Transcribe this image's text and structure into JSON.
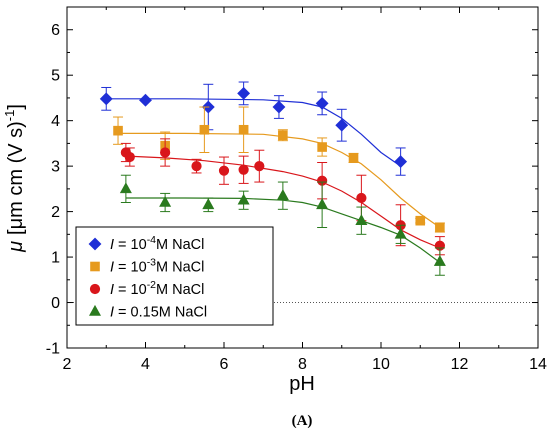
{
  "chart_data": {
    "type": "scatter",
    "caption": "(A)",
    "xlabel": "pH",
    "ylabel_symbol": "μ",
    "ylabel_unit": "[μm cm (V s)",
    "ylabel_exp": "-1",
    "ylabel_close": "]",
    "xlim": [
      2,
      14
    ],
    "ylim": [
      -1,
      6.5
    ],
    "xticks": [
      2,
      4,
      6,
      8,
      10,
      12,
      14
    ],
    "yticks": [
      -1,
      0,
      1,
      2,
      3,
      4,
      5,
      6
    ],
    "reference_line_y": 0,
    "legend_position": "bottom-left",
    "series": [
      {
        "name": "I = 10⁻⁴M NaCl",
        "legend_pre": "I",
        "legend_mid": " = 10",
        "legend_exp": "-4",
        "legend_post": "M NaCl",
        "color": "#1f2fd6",
        "marker": "diamond",
        "points": [
          {
            "x": 3.0,
            "y": 4.48,
            "err": 0.25
          },
          {
            "x": 4.0,
            "y": 4.45,
            "err": 0.0
          },
          {
            "x": 5.6,
            "y": 4.3,
            "err": 0.5
          },
          {
            "x": 6.5,
            "y": 4.6,
            "err": 0.25
          },
          {
            "x": 7.4,
            "y": 4.3,
            "err": 0.25
          },
          {
            "x": 8.5,
            "y": 4.38,
            "err": 0.25
          },
          {
            "x": 9.0,
            "y": 3.9,
            "err": 0.35
          },
          {
            "x": 10.5,
            "y": 3.1,
            "err": 0.3
          }
        ],
        "fit": [
          [
            3.0,
            4.48
          ],
          [
            5.0,
            4.48
          ],
          [
            7.0,
            4.46
          ],
          [
            8.0,
            4.4
          ],
          [
            8.5,
            4.3
          ],
          [
            9.0,
            4.05
          ],
          [
            9.5,
            3.7
          ],
          [
            10.0,
            3.3
          ],
          [
            10.5,
            3.0
          ]
        ]
      },
      {
        "name": "I = 10⁻³M NaCl",
        "legend_pre": "I",
        "legend_mid": " = 10",
        "legend_exp": "-3",
        "legend_post": "M NaCl",
        "color": "#e69a1e",
        "marker": "square",
        "points": [
          {
            "x": 3.3,
            "y": 3.78,
            "err": 0.3
          },
          {
            "x": 4.5,
            "y": 3.45,
            "err": 0.3
          },
          {
            "x": 5.5,
            "y": 3.8,
            "err": 0.5
          },
          {
            "x": 6.5,
            "y": 3.8,
            "err": 0.5
          },
          {
            "x": 7.5,
            "y": 3.68,
            "err": 0.12
          },
          {
            "x": 8.5,
            "y": 3.42,
            "err": 0.2
          },
          {
            "x": 9.3,
            "y": 3.18,
            "err": 0.1
          },
          {
            "x": 11.0,
            "y": 1.8,
            "err": 0.05
          },
          {
            "x": 11.5,
            "y": 1.65,
            "err": 0.1
          }
        ],
        "fit": [
          [
            3.3,
            3.72
          ],
          [
            5.0,
            3.72
          ],
          [
            7.0,
            3.7
          ],
          [
            8.0,
            3.6
          ],
          [
            8.5,
            3.5
          ],
          [
            9.0,
            3.3
          ],
          [
            9.5,
            3.05
          ],
          [
            10.0,
            2.7
          ],
          [
            10.5,
            2.3
          ],
          [
            11.0,
            1.95
          ],
          [
            11.5,
            1.65
          ]
        ]
      },
      {
        "name": "I = 10⁻²M NaCl",
        "legend_pre": "I",
        "legend_mid": " = 10",
        "legend_exp": "-2",
        "legend_post": "M NaCl",
        "color": "#d9161b",
        "marker": "circle",
        "points": [
          {
            "x": 3.5,
            "y": 3.3,
            "err": 0.2
          },
          {
            "x": 3.6,
            "y": 3.2,
            "err": 0.2
          },
          {
            "x": 4.5,
            "y": 3.3,
            "err": 0.3
          },
          {
            "x": 5.3,
            "y": 3.0,
            "err": 0.15
          },
          {
            "x": 6.0,
            "y": 2.9,
            "err": 0.3
          },
          {
            "x": 6.5,
            "y": 2.92,
            "err": 0.3
          },
          {
            "x": 6.9,
            "y": 3.0,
            "err": 0.35
          },
          {
            "x": 8.5,
            "y": 2.68,
            "err": 0.4
          },
          {
            "x": 9.5,
            "y": 2.3,
            "err": 0.5
          },
          {
            "x": 10.5,
            "y": 1.7,
            "err": 0.45
          },
          {
            "x": 11.5,
            "y": 1.25,
            "err": 0.2
          }
        ],
        "fit": [
          [
            3.5,
            3.22
          ],
          [
            4.5,
            3.18
          ],
          [
            5.5,
            3.12
          ],
          [
            6.5,
            3.02
          ],
          [
            7.5,
            2.88
          ],
          [
            8.0,
            2.78
          ],
          [
            8.5,
            2.65
          ],
          [
            9.0,
            2.45
          ],
          [
            9.5,
            2.2
          ],
          [
            10.0,
            1.9
          ],
          [
            10.5,
            1.6
          ],
          [
            11.0,
            1.38
          ],
          [
            11.5,
            1.2
          ]
        ]
      },
      {
        "name": "I = 0.15M NaCl",
        "legend_pre": "I",
        "legend_mid": " = 0.15M NaCl",
        "legend_exp": "",
        "legend_post": "",
        "color": "#2a7a1e",
        "marker": "triangle",
        "points": [
          {
            "x": 3.5,
            "y": 2.5,
            "err": 0.3
          },
          {
            "x": 4.5,
            "y": 2.2,
            "err": 0.2
          },
          {
            "x": 5.6,
            "y": 2.15,
            "err": 0.15
          },
          {
            "x": 6.5,
            "y": 2.25,
            "err": 0.2
          },
          {
            "x": 7.5,
            "y": 2.35,
            "err": 0.3
          },
          {
            "x": 8.5,
            "y": 2.15,
            "err": 0.5
          },
          {
            "x": 9.5,
            "y": 1.8,
            "err": 0.3
          },
          {
            "x": 10.5,
            "y": 1.5,
            "err": 0.2
          },
          {
            "x": 11.5,
            "y": 0.9,
            "err": 0.3
          }
        ],
        "fit": [
          [
            3.5,
            2.3
          ],
          [
            5.0,
            2.3
          ],
          [
            6.5,
            2.29
          ],
          [
            7.5,
            2.25
          ],
          [
            8.0,
            2.2
          ],
          [
            8.5,
            2.1
          ],
          [
            9.0,
            1.95
          ],
          [
            9.5,
            1.8
          ],
          [
            10.0,
            1.65
          ],
          [
            10.5,
            1.48
          ],
          [
            11.0,
            1.2
          ],
          [
            11.5,
            0.88
          ]
        ]
      }
    ]
  }
}
